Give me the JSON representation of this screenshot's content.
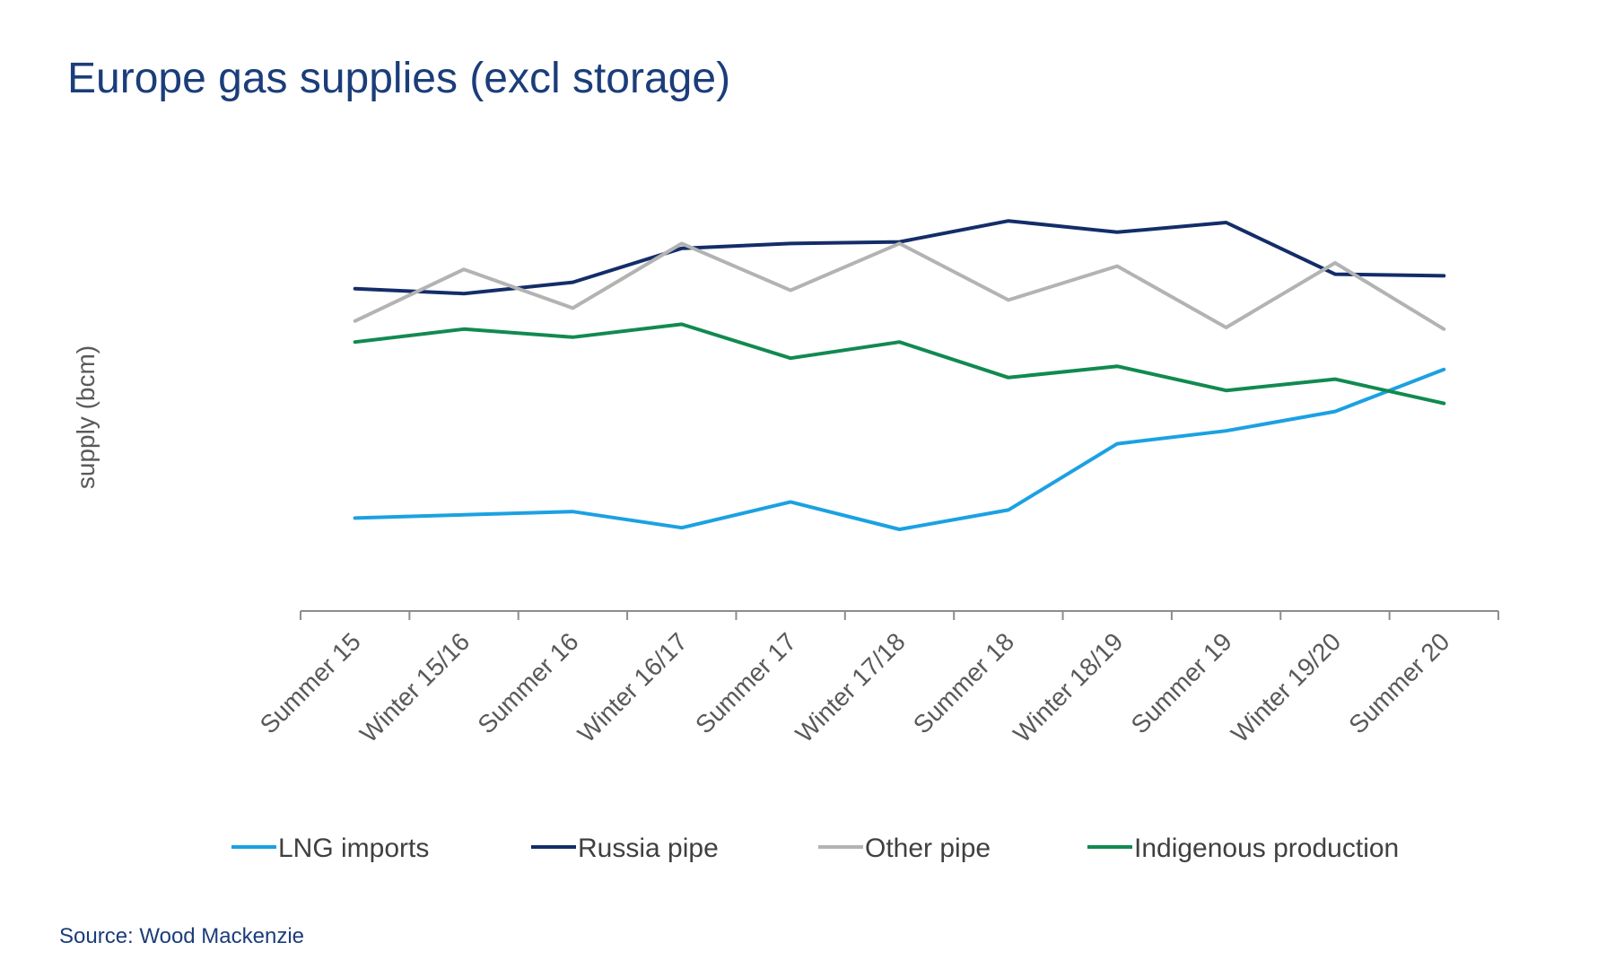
{
  "title": "Europe gas supplies (excl storage)",
  "source": "Source: Wood Mackenzie",
  "chart_data": {
    "type": "line",
    "title": "Europe gas supplies (excl storage)",
    "xlabel": "",
    "ylabel": "supply (bcm)",
    "y_ticks_shown": false,
    "ylim": [
      0,
      100
    ],
    "grid": false,
    "legend_position": "bottom",
    "categories": [
      "Summer 15",
      "Winter 15/16",
      "Summer 16",
      "Winter 16/17",
      "Summer 17",
      "Winter 17/18",
      "Summer 18",
      "Winter 18/19",
      "Summer 19",
      "Winter 19/20",
      "Summer 20"
    ],
    "series": [
      {
        "name": "LNG imports",
        "color": "#1ba1e2",
        "values": [
          16,
          17,
          18,
          13,
          21,
          12.5,
          18.5,
          39,
          43,
          49,
          62
        ]
      },
      {
        "name": "Russia pipe",
        "color": "#142d69",
        "values": [
          87,
          85.5,
          89,
          99.5,
          101,
          101.5,
          108,
          104.5,
          107.5,
          91.5,
          91
        ]
      },
      {
        "name": "Other pipe",
        "color": "#b3b3b3",
        "values": [
          77,
          93,
          81,
          101,
          86.5,
          101,
          83.5,
          94,
          75,
          95,
          74.5
        ]
      },
      {
        "name": "Indigenous production",
        "color": "#118a4f",
        "values": [
          70.5,
          74.5,
          72,
          76,
          65.5,
          70.5,
          59.5,
          63,
          55.5,
          59,
          51.5
        ]
      }
    ]
  }
}
